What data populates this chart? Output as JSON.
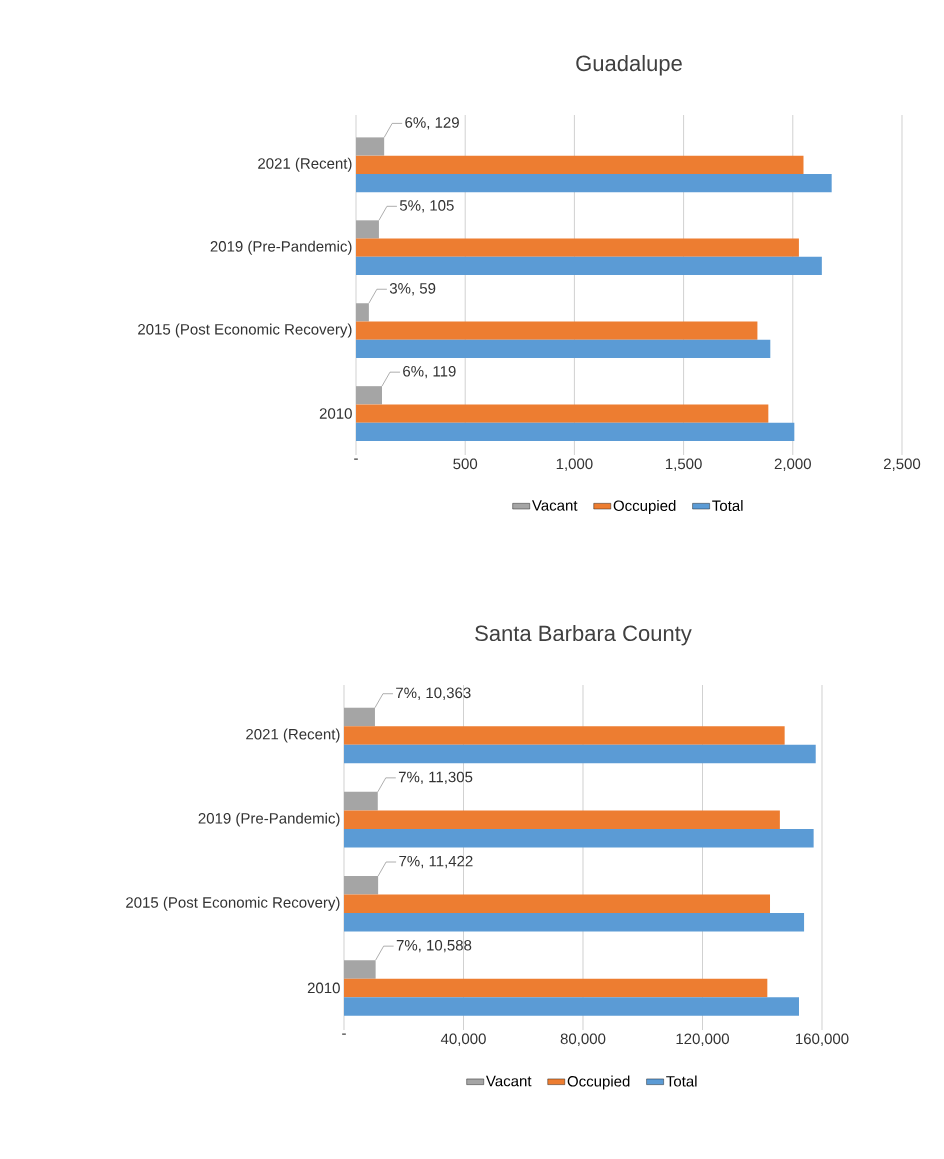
{
  "chart_data": [
    {
      "type": "bar",
      "orientation": "horizontal",
      "title": "Guadalupe",
      "categories": [
        "2021 (Recent)",
        "2019 (Pre-Pandemic)",
        "2015 (Post Economic Recovery)",
        "2010"
      ],
      "series": [
        {
          "name": "Vacant",
          "color": "#a5a5a5",
          "values": [
            129,
            105,
            59,
            119
          ],
          "value_labels": [
            "6%,  129",
            "5%,  105",
            "3%,  59",
            "6%,  119"
          ]
        },
        {
          "name": "Occupied",
          "color": "#ed7d31",
          "values": [
            2049,
            2028,
            1838,
            1888
          ]
        },
        {
          "name": "Total",
          "color": "#5b9bd5",
          "values": [
            2178,
            2133,
            1897,
            2007
          ]
        }
      ],
      "xlim": [
        0,
        2500
      ],
      "xticks": [
        {
          "value": 0,
          "label": "-"
        },
        500,
        {
          "value": 1000,
          "label": "1,000"
        },
        {
          "value": 1500,
          "label": "1,500"
        },
        {
          "value": 2000,
          "label": "2,000"
        },
        {
          "value": 2500,
          "label": "2,500"
        }
      ],
      "grid": "x",
      "legend": "bottom"
    },
    {
      "type": "bar",
      "orientation": "horizontal",
      "title": "Santa Barbara County",
      "categories": [
        "2021 (Recent)",
        "2019 (Pre-Pandemic)",
        "2015 (Post Economic Recovery)",
        "2010"
      ],
      "series": [
        {
          "name": "Vacant",
          "color": "#a5a5a5",
          "values": [
            10363,
            11305,
            11422,
            10588
          ],
          "value_labels": [
            "7%,  10,363",
            "7%,  11,305",
            "7%,  11,422",
            "7%,  10,588"
          ]
        },
        {
          "name": "Occupied",
          "color": "#ed7d31",
          "values": [
            147500,
            145900,
            142600,
            141700
          ]
        },
        {
          "name": "Total",
          "color": "#5b9bd5",
          "values": [
            157900,
            157200,
            154000,
            152300
          ]
        }
      ],
      "xlim": [
        0,
        160000
      ],
      "xticks": [
        {
          "value": 0,
          "label": "-"
        },
        {
          "value": 40000,
          "label": "40,000"
        },
        {
          "value": 80000,
          "label": "80,000"
        },
        {
          "value": 120000,
          "label": "120,000"
        },
        {
          "value": 160000,
          "label": "160,000"
        }
      ],
      "grid": "x",
      "legend": "bottom"
    }
  ]
}
